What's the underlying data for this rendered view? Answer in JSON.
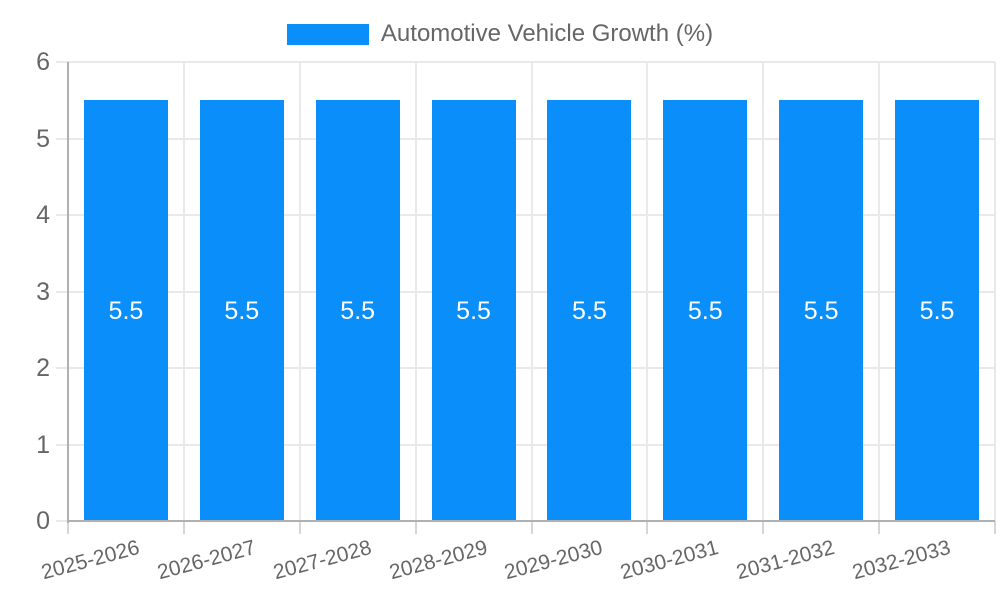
{
  "legend": {
    "label": "Automotive Vehicle Growth (%)",
    "swatch_color": "#0a8ffa"
  },
  "colors": {
    "bar": "#0a8ffa",
    "grid": "#e9e9e9",
    "axis": "#b0b0b0",
    "x_tick_mark": "#d6d6d6",
    "tick_text": "#666666",
    "bar_label_text": "#ffffff",
    "background": "#ffffff"
  },
  "chart_data": {
    "type": "bar",
    "title": "Automotive Vehicle Growth (%)",
    "legend_entries": [
      "Automotive Vehicle Growth (%)"
    ],
    "legend_position": "top",
    "categories": [
      "2025-2026",
      "2026-2027",
      "2027-2028",
      "2028-2029",
      "2029-2030",
      "2030-2031",
      "2031-2032",
      "2032-2033"
    ],
    "series": [
      {
        "name": "Automotive Vehicle Growth (%)",
        "values": [
          5.5,
          5.5,
          5.5,
          5.5,
          5.5,
          5.5,
          5.5,
          5.5
        ]
      }
    ],
    "value_labels": [
      "5.5",
      "5.5",
      "5.5",
      "5.5",
      "5.5",
      "5.5",
      "5.5",
      "5.5"
    ],
    "xlabel": "",
    "ylabel": "",
    "ylim": [
      0,
      6
    ],
    "yticks": [
      0,
      1,
      2,
      3,
      4,
      5,
      6
    ],
    "ytick_labels": [
      "0",
      "1",
      "2",
      "3",
      "4",
      "5",
      "6"
    ],
    "grid": true,
    "x_label_rotation_deg": -15
  }
}
